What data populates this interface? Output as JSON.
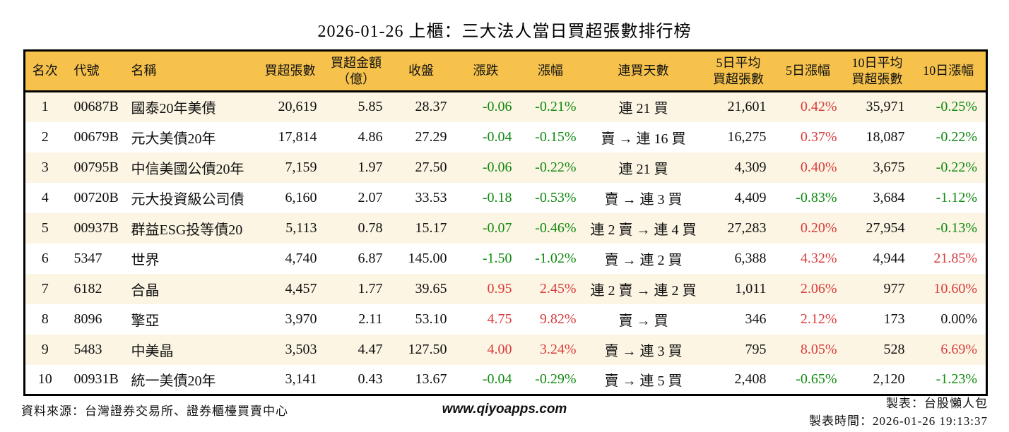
{
  "title": "2026-01-26 上櫃：三大法人當日買超張數排行榜",
  "colors": {
    "up_red": "#D93C3C",
    "down_green": "#108A10",
    "header_bg": "#F6C24C",
    "row_alt_bg": "#FCF5E3",
    "border": "#000000"
  },
  "table": {
    "columns": [
      {
        "key": "rank",
        "label": "名次",
        "signed": false
      },
      {
        "key": "code",
        "label": "代號",
        "signed": false
      },
      {
        "key": "name",
        "label": "名稱",
        "signed": false
      },
      {
        "key": "net_buy",
        "label": "買超張數",
        "signed": false
      },
      {
        "key": "amount",
        "label": "買超金額\n（億）",
        "signed": false
      },
      {
        "key": "close",
        "label": "收盤",
        "signed": false
      },
      {
        "key": "change",
        "label": "漲跌",
        "signed": true
      },
      {
        "key": "change_pct",
        "label": "漲幅",
        "signed": true
      },
      {
        "key": "streak",
        "label": "連買天數",
        "signed": false
      },
      {
        "key": "avg5",
        "label": "5日平均\n買超張數",
        "signed": false
      },
      {
        "key": "pct5",
        "label": "5日漲幅",
        "signed": true
      },
      {
        "key": "avg10",
        "label": "10日平均\n買超張數",
        "signed": false
      },
      {
        "key": "pct10",
        "label": "10日漲幅",
        "signed": true
      }
    ],
    "rows": [
      {
        "rank": "1",
        "code": "00687B",
        "name": "國泰20年美債",
        "net_buy": "20,619",
        "amount": "5.85",
        "close": "28.37",
        "change": "-0.06",
        "change_pct": "-0.21%",
        "streak": "連 21 買",
        "avg5": "21,601",
        "pct5": "0.42%",
        "avg10": "35,971",
        "pct10": "-0.25%"
      },
      {
        "rank": "2",
        "code": "00679B",
        "name": "元大美債20年",
        "net_buy": "17,814",
        "amount": "4.86",
        "close": "27.29",
        "change": "-0.04",
        "change_pct": "-0.15%",
        "streak": "賣 → 連 16 買",
        "avg5": "16,275",
        "pct5": "0.37%",
        "avg10": "18,087",
        "pct10": "-0.22%"
      },
      {
        "rank": "3",
        "code": "00795B",
        "name": "中信美國公債20年",
        "net_buy": "7,159",
        "amount": "1.97",
        "close": "27.50",
        "change": "-0.06",
        "change_pct": "-0.22%",
        "streak": "連 21 買",
        "avg5": "4,309",
        "pct5": "0.40%",
        "avg10": "3,675",
        "pct10": "-0.22%"
      },
      {
        "rank": "4",
        "code": "00720B",
        "name": "元大投資級公司債",
        "net_buy": "6,160",
        "amount": "2.07",
        "close": "33.53",
        "change": "-0.18",
        "change_pct": "-0.53%",
        "streak": "賣 → 連 3 買",
        "avg5": "4,409",
        "pct5": "-0.83%",
        "avg10": "3,684",
        "pct10": "-1.12%"
      },
      {
        "rank": "5",
        "code": "00937B",
        "name": "群益ESG投等債20",
        "net_buy": "5,113",
        "amount": "0.78",
        "close": "15.17",
        "change": "-0.07",
        "change_pct": "-0.46%",
        "streak": "連 2 賣 → 連 4 買",
        "avg5": "27,283",
        "pct5": "0.20%",
        "avg10": "27,954",
        "pct10": "-0.13%"
      },
      {
        "rank": "6",
        "code": "5347",
        "name": "世界",
        "net_buy": "4,740",
        "amount": "6.87",
        "close": "145.00",
        "change": "-1.50",
        "change_pct": "-1.02%",
        "streak": "賣 → 連 2 買",
        "avg5": "6,388",
        "pct5": "4.32%",
        "avg10": "4,944",
        "pct10": "21.85%"
      },
      {
        "rank": "7",
        "code": "6182",
        "name": "合晶",
        "net_buy": "4,457",
        "amount": "1.77",
        "close": "39.65",
        "change": "0.95",
        "change_pct": "2.45%",
        "streak": "連 2 賣 → 連 2 買",
        "avg5": "1,011",
        "pct5": "2.06%",
        "avg10": "977",
        "pct10": "10.60%"
      },
      {
        "rank": "8",
        "code": "8096",
        "name": "擎亞",
        "net_buy": "3,970",
        "amount": "2.11",
        "close": "53.10",
        "change": "4.75",
        "change_pct": "9.82%",
        "streak": "賣 → 買",
        "avg5": "346",
        "pct5": "2.12%",
        "avg10": "173",
        "pct10": "0.00%"
      },
      {
        "rank": "9",
        "code": "5483",
        "name": "中美晶",
        "net_buy": "3,503",
        "amount": "4.47",
        "close": "127.50",
        "change": "4.00",
        "change_pct": "3.24%",
        "streak": "賣 → 連 3 買",
        "avg5": "795",
        "pct5": "8.05%",
        "avg10": "528",
        "pct10": "6.69%"
      },
      {
        "rank": "10",
        "code": "00931B",
        "name": "統一美債20年",
        "net_buy": "3,141",
        "amount": "0.43",
        "close": "13.67",
        "change": "-0.04",
        "change_pct": "-0.29%",
        "streak": "賣 → 連 5 買",
        "avg5": "2,408",
        "pct5": "-0.65%",
        "avg10": "2,120",
        "pct10": "-1.23%"
      }
    ]
  },
  "footer": {
    "source": "資料來源：台灣證券交易所、證券櫃檯買賣中心",
    "website": "www.qiyoapps.com",
    "made_by": "製表：台股懶人包",
    "made_time": "製表時間：2026-01-26 19:13:37"
  }
}
